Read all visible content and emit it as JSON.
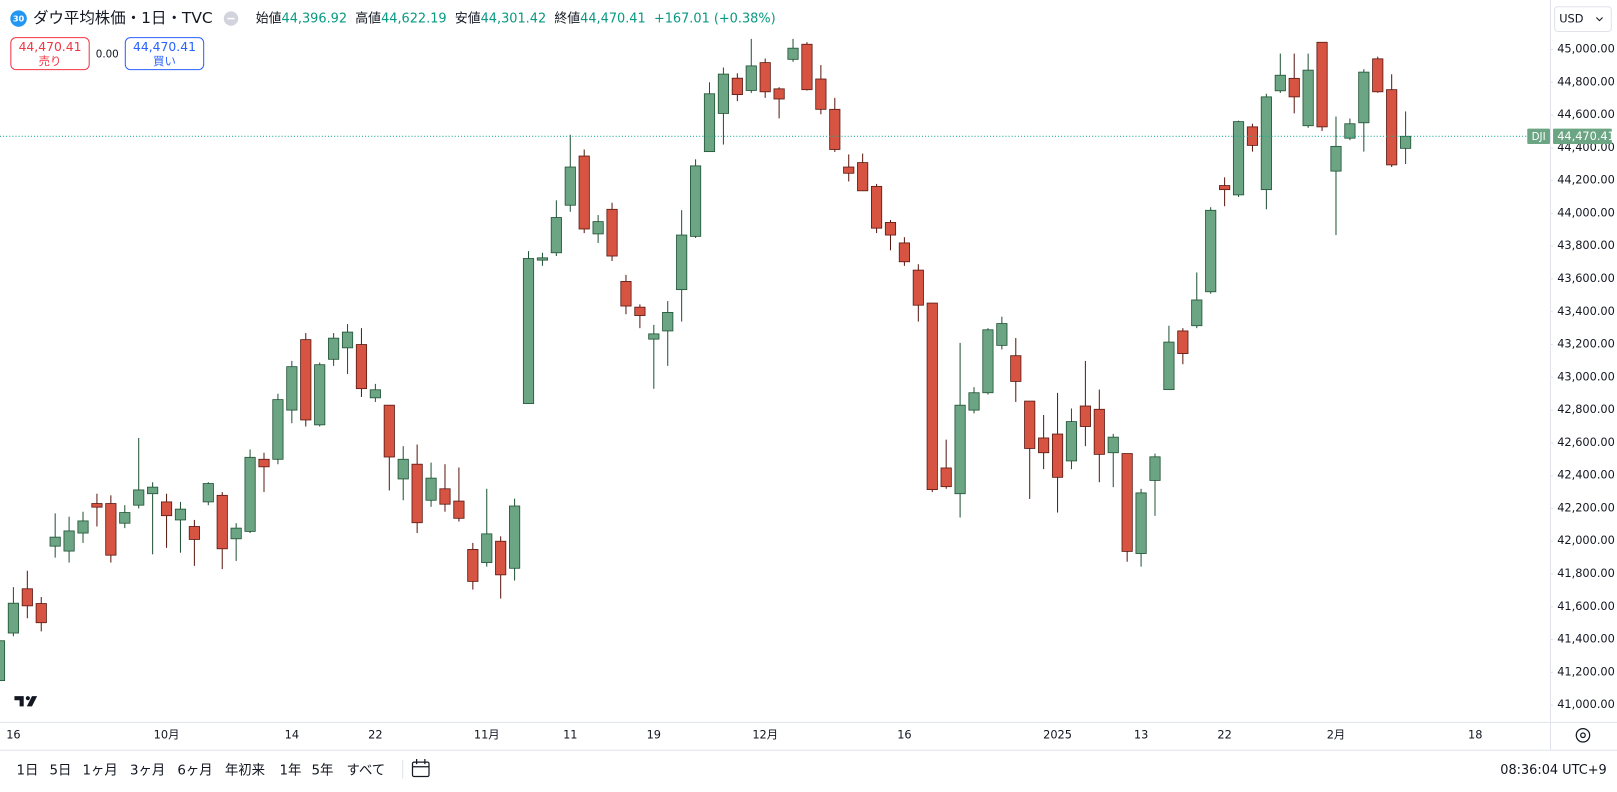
{
  "header": {
    "badge": "30",
    "title": "ダウ平均株価・1日・TVC",
    "ohlc": [
      {
        "label": "始値",
        "value": "44,396.92"
      },
      {
        "label": "高値",
        "value": "44,622.19"
      },
      {
        "label": "安値",
        "value": "44,301.42"
      },
      {
        "label": "終値",
        "value": "44,470.41"
      }
    ],
    "change": "+167.01 (+0.38%)"
  },
  "trade": {
    "sell_price": "44,470.41",
    "sell_label": "売り",
    "spread": "0.00",
    "buy_price": "44,470.41",
    "buy_label": "買い"
  },
  "currency": "USD",
  "toolbar": {
    "ranges": [
      "1日",
      "5日",
      "1ヶ月",
      "3ヶ月",
      "6ヶ月",
      "年初来",
      "1年",
      "5年",
      "すべて"
    ],
    "time": "08:36:04 UTC+9"
  },
  "chart_data": {
    "type": "candlestick",
    "up_color": "#6ba583",
    "down_color": "#d75442",
    "grid": false,
    "categories": [
      null,
      "16",
      null,
      null,
      null,
      null,
      null,
      null,
      null,
      null,
      null,
      null,
      "10月",
      null,
      null,
      null,
      null,
      null,
      null,
      null,
      null,
      "14",
      null,
      null,
      null,
      null,
      null,
      "22",
      null,
      null,
      null,
      null,
      null,
      null,
      null,
      "11月",
      null,
      null,
      null,
      null,
      null,
      "11",
      null,
      null,
      null,
      null,
      null,
      "19",
      null,
      null,
      null,
      null,
      null,
      null,
      null,
      "12月",
      null,
      null,
      null,
      null,
      null,
      null,
      null,
      null,
      null,
      "16",
      null,
      null,
      null,
      null,
      null,
      null,
      null,
      null,
      null,
      null,
      "2025",
      null,
      null,
      null,
      null,
      null,
      "13",
      null,
      null,
      null,
      null,
      null,
      "22",
      null,
      null,
      null,
      null,
      null,
      null,
      null,
      "2月",
      null,
      null,
      null,
      null,
      null,
      null,
      null,
      null,
      null,
      "18"
    ],
    "open": [
      41150,
      41440,
      41710,
      41620,
      41970,
      41940,
      42050,
      42230,
      42230,
      42110,
      42220,
      42290,
      42240,
      42130,
      42090,
      42240,
      42280,
      42015,
      42060,
      42500,
      42500,
      42800,
      43230,
      42710,
      43110,
      43180,
      43200,
      42875,
      42830,
      42380,
      42470,
      42250,
      42320,
      42245,
      41950,
      41870,
      42000,
      41835,
      42840,
      43715,
      43760,
      44050,
      44350,
      43875,
      44025,
      43585,
      43428,
      43233,
      43283,
      43535,
      43860,
      44377,
      44610,
      44825,
      44750,
      44920,
      44760,
      44940,
      45032,
      44820,
      44635,
      44283,
      44310,
      44165,
      43945,
      43820,
      43654,
      43453,
      42447,
      42290,
      42800,
      42906,
      43195,
      43132,
      42855,
      42630,
      42654,
      42490,
      42825,
      42805,
      42540,
      42535,
      41925,
      42371,
      42925,
      43283,
      43315,
      43522,
      44170,
      44113,
      44528,
      44145,
      44748,
      44824,
      44535,
      45044,
      44258,
      44459,
      44553,
      44943,
      44755,
      44396.92,
      null,
      null,
      null,
      null,
      null
    ],
    "high": [
      41420,
      41720,
      41820,
      41660,
      42170,
      42150,
      42180,
      42290,
      42280,
      42220,
      42630,
      42360,
      42290,
      42240,
      42130,
      42360,
      42300,
      42110,
      42560,
      42540,
      42900,
      43100,
      43270,
      43090,
      43270,
      43325,
      43300,
      42960,
      42830,
      42580,
      42590,
      42480,
      42470,
      42450,
      41990,
      42320,
      42030,
      42260,
      43770,
      43760,
      44080,
      44480,
      44390,
      43990,
      44065,
      43625,
      43445,
      43320,
      43465,
      44020,
      44330,
      44800,
      44890,
      44855,
      45065,
      44945,
      44770,
      45065,
      45045,
      44905,
      44705,
      44360,
      44365,
      44180,
      43960,
      43855,
      43690,
      43453,
      42620,
      43210,
      42940,
      43300,
      43370,
      43240,
      42855,
      42770,
      42905,
      42810,
      43100,
      42925,
      42655,
      42535,
      42320,
      42535,
      43315,
      43300,
      43640,
      44038,
      44220,
      44566,
      44547,
      44730,
      44975,
      44975,
      44975,
      45044,
      44591,
      44579,
      44880,
      44956,
      44849,
      44622.19,
      null,
      null,
      null,
      null,
      null
    ],
    "low": [
      41130,
      41420,
      41530,
      41450,
      41900,
      41870,
      41990,
      42090,
      41870,
      42080,
      42200,
      41920,
      41960,
      41930,
      41850,
      42220,
      41830,
      41880,
      42050,
      42300,
      42470,
      42720,
      42700,
      42700,
      43070,
      43020,
      42880,
      42850,
      42310,
      42250,
      42050,
      42210,
      42180,
      42120,
      41705,
      41845,
      41650,
      41760,
      42840,
      43680,
      43740,
      44010,
      43880,
      43820,
      43710,
      43385,
      43300,
      42930,
      43070,
      43340,
      43850,
      44377,
      44420,
      44685,
      44735,
      44705,
      44580,
      44925,
      44750,
      44605,
      44375,
      44195,
      44138,
      43880,
      43775,
      43680,
      43340,
      42300,
      42320,
      42145,
      42780,
      42895,
      43170,
      42850,
      42258,
      42440,
      42175,
      42440,
      42580,
      42360,
      42330,
      41875,
      41845,
      42155,
      42925,
      43080,
      43300,
      43510,
      44044,
      44100,
      44377,
      44025,
      44735,
      44610,
      44522,
      44503,
      43868,
      44447,
      44377,
      44736,
      44283,
      44301.42,
      null,
      null,
      null,
      null,
      null
    ],
    "close": [
      41393,
      41622,
      41606,
      41503,
      42025,
      42063,
      42124,
      42208,
      41915,
      42175,
      42313,
      42330,
      42156,
      42196,
      42011,
      42352,
      41954,
      42080,
      42512,
      42454,
      42864,
      43065,
      42740,
      43077,
      43239,
      43276,
      42931,
      42924,
      42514,
      42500,
      42113,
      42385,
      42226,
      42140,
      41755,
      42045,
      41795,
      42215,
      43725,
      43729,
      43975,
      44283,
      43905,
      43950,
      43740,
      43435,
      43377,
      43265,
      43396,
      43868,
      44290,
      44730,
      44850,
      44725,
      44900,
      44742,
      44698,
      45008,
      44755,
      44635,
      44390,
      44245,
      44138,
      43910,
      43868,
      43705,
      43440,
      42315,
      42333,
      42830,
      42906,
      43290,
      43328,
      42975,
      42566,
      42540,
      42390,
      42730,
      42700,
      42530,
      42635,
      41938,
      42295,
      42515,
      43215,
      43145,
      43472,
      44019,
      44145,
      44560,
      44415,
      44711,
      44843,
      44711,
      44874,
      44528,
      44409,
      44547,
      44862,
      44742,
      44296,
      44470.41,
      null,
      null,
      null,
      null,
      null
    ],
    "ylim": [
      40898,
      45302
    ],
    "yticks": [
      {
        "value": 41000,
        "label": "41,000.00"
      },
      {
        "value": 41200,
        "label": "41,200.00"
      },
      {
        "value": 41400,
        "label": "41,400.00"
      },
      {
        "value": 41600,
        "label": "41,600.00"
      },
      {
        "value": 41800,
        "label": "41,800.00"
      },
      {
        "value": 42000,
        "label": "42,000.00"
      },
      {
        "value": 42200,
        "label": "42,200.00"
      },
      {
        "value": 42400,
        "label": "42,400.00"
      },
      {
        "value": 42600,
        "label": "42,600.00"
      },
      {
        "value": 42800,
        "label": "42,800.00"
      },
      {
        "value": 43000,
        "label": "43,000.00"
      },
      {
        "value": 43200,
        "label": "43,200.00"
      },
      {
        "value": 43400,
        "label": "43,400.00"
      },
      {
        "value": 43600,
        "label": "43,600.00"
      },
      {
        "value": 43800,
        "label": "43,800.00"
      },
      {
        "value": 44000,
        "label": "44,000.00"
      },
      {
        "value": 44200,
        "label": "44,200.00"
      },
      {
        "value": 44400,
        "label": "44,400.00"
      },
      {
        "value": 44600,
        "label": "44,600.00"
      },
      {
        "value": 44800,
        "label": "44,800.00"
      },
      {
        "value": 45000,
        "label": "45,000.00"
      }
    ],
    "price_line": {
      "symbol": "DJI",
      "value": 44470.41,
      "label": "44,470.41"
    }
  }
}
